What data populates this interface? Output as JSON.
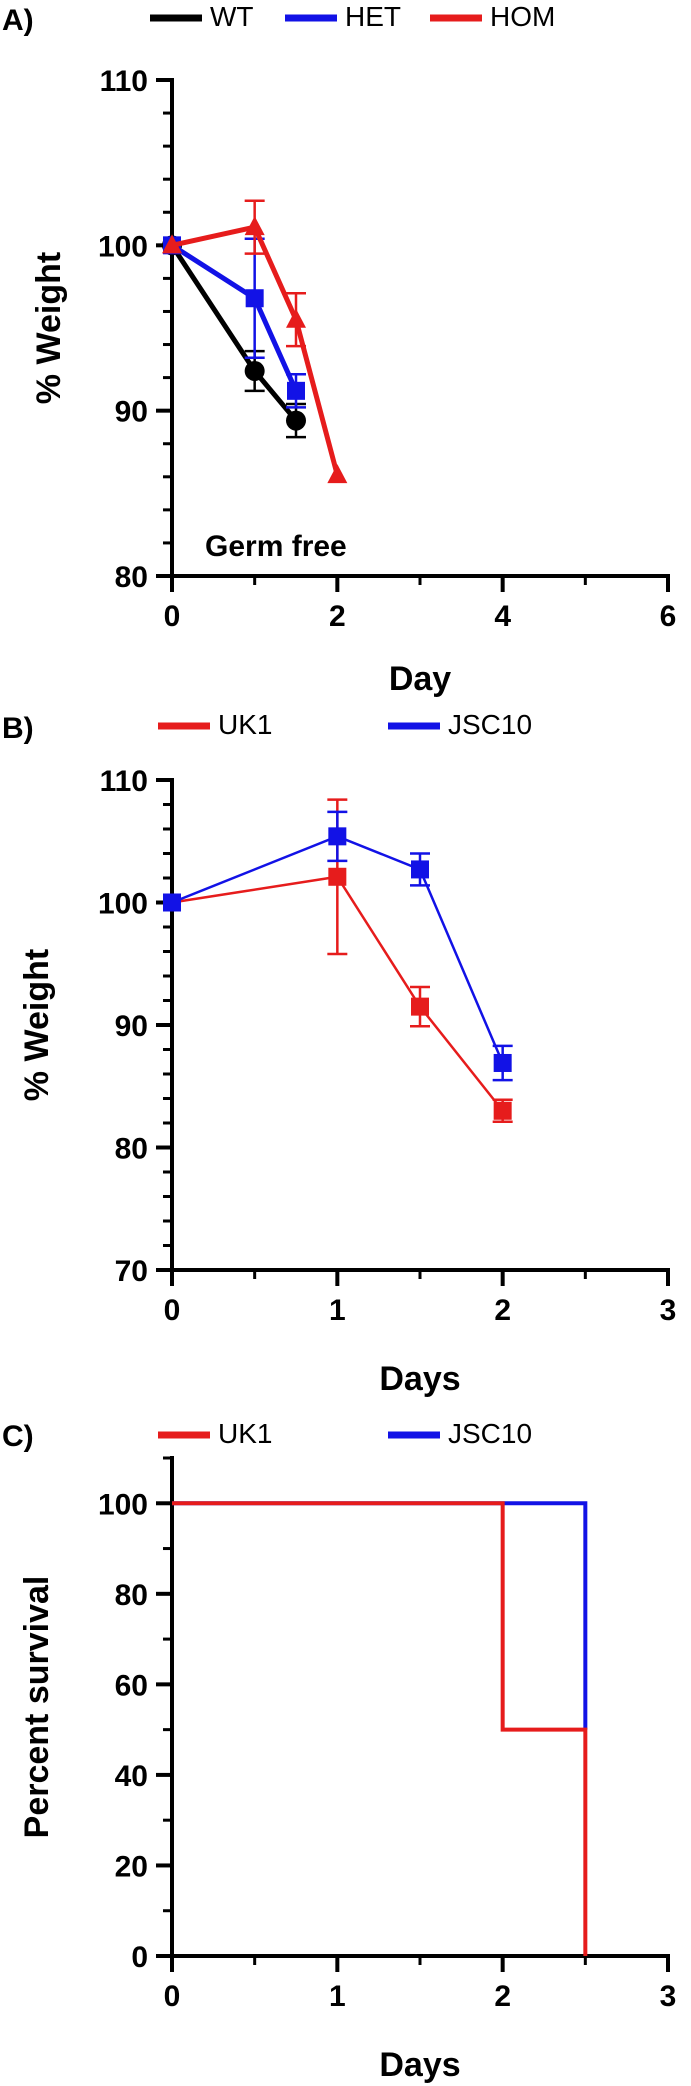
{
  "chart_data": [
    {
      "id": "A",
      "panel_label": "A)",
      "type": "line",
      "xlabel": "Day",
      "ylabel": "% Weight",
      "xlim": [
        0,
        6
      ],
      "ylim": [
        80,
        110
      ],
      "xticks": [
        0,
        2,
        4,
        6
      ],
      "xticks_minor": [
        1,
        3,
        5
      ],
      "yticks": [
        80,
        90,
        100,
        110
      ],
      "yticks_minor": [
        82,
        84,
        86,
        88,
        92,
        94,
        96,
        98,
        102,
        104,
        106,
        108
      ],
      "annotation": "Germ free",
      "series": [
        {
          "name": "WT",
          "color": "#000000",
          "marker": "circle",
          "x": [
            0,
            1,
            1.5
          ],
          "y": [
            100,
            92.4,
            89.4
          ],
          "err": [
            0,
            1.2,
            1.0
          ]
        },
        {
          "name": "HET",
          "color": "#1212e6",
          "marker": "square",
          "x": [
            0,
            1,
            1.5
          ],
          "y": [
            100,
            96.8,
            91.2
          ],
          "err": [
            0,
            3.6,
            1.0
          ]
        },
        {
          "name": "HOM",
          "color": "#e61c1c",
          "marker": "triangle",
          "x": [
            0,
            1,
            1.5,
            2
          ],
          "y": [
            100,
            101.1,
            95.5,
            86.1
          ],
          "err": [
            0,
            1.6,
            1.6,
            0
          ]
        }
      ]
    },
    {
      "id": "B",
      "panel_label": "B)",
      "type": "line",
      "xlabel": "Days",
      "ylabel": "% Weight",
      "xlim": [
        0,
        3
      ],
      "ylim": [
        70,
        110
      ],
      "xticks": [
        0,
        1,
        2,
        3
      ],
      "xticks_minor": [
        0.5,
        1.5,
        2.5
      ],
      "yticks": [
        70,
        80,
        90,
        100,
        110
      ],
      "yticks_minor": [
        72,
        74,
        76,
        78,
        82,
        84,
        86,
        88,
        92,
        94,
        96,
        98,
        102,
        104,
        106,
        108
      ],
      "series": [
        {
          "name": "UK1",
          "color": "#e61c1c",
          "marker": "square",
          "x": [
            0,
            1,
            1.5,
            2
          ],
          "y": [
            100,
            102.1,
            91.5,
            83.0
          ],
          "err": [
            0,
            6.3,
            1.6,
            0.9
          ]
        },
        {
          "name": "JSC10",
          "color": "#1212e6",
          "marker": "square",
          "x": [
            0,
            1,
            1.5,
            2
          ],
          "y": [
            100,
            105.4,
            102.7,
            86.9
          ],
          "err": [
            0,
            2.0,
            1.3,
            1.4
          ]
        }
      ]
    },
    {
      "id": "C",
      "panel_label": "C)",
      "type": "line",
      "subtype": "step",
      "xlabel": "Days",
      "ylabel": "Percent survival",
      "xlim": [
        0,
        3
      ],
      "ylim": [
        0,
        110
      ],
      "xticks": [
        0,
        1,
        2,
        3
      ],
      "xticks_minor": [
        0.5,
        1.5,
        2.5
      ],
      "yticks": [
        0,
        20,
        40,
        60,
        80,
        100
      ],
      "yticks_minor": [
        10,
        30,
        50,
        70,
        90,
        110
      ],
      "series": [
        {
          "name": "JSC10",
          "color": "#1212e6",
          "x": [
            0,
            2,
            2.5,
            2.5
          ],
          "y": [
            100,
            100,
            100,
            50
          ]
        },
        {
          "name": "UK1",
          "color": "#e61c1c",
          "x": [
            0,
            2,
            2,
            2.5,
            2.5
          ],
          "y": [
            100,
            100,
            50,
            50,
            0
          ]
        }
      ]
    }
  ]
}
